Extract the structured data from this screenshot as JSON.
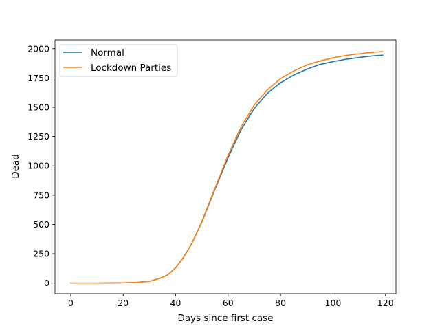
{
  "chart_data": {
    "type": "line",
    "title": "",
    "xlabel": "Days since first case",
    "ylabel": "Dead",
    "xlim": [
      -6,
      124
    ],
    "ylim": [
      -90,
      2075
    ],
    "xticks": [
      0,
      20,
      40,
      60,
      80,
      100,
      120
    ],
    "yticks": [
      0,
      250,
      500,
      750,
      1000,
      1250,
      1500,
      1750,
      2000
    ],
    "grid": false,
    "legend_position": "top-left",
    "series": [
      {
        "name": "Normal",
        "color": "#1f77b4",
        "x": [
          0,
          10,
          20,
          25,
          30,
          34,
          37,
          40,
          43,
          46,
          50,
          55,
          60,
          65,
          70,
          75,
          80,
          85,
          90,
          95,
          100,
          105,
          110,
          115,
          119
        ],
        "y": [
          0,
          0,
          2,
          5,
          15,
          40,
          70,
          130,
          220,
          330,
          520,
          800,
          1070,
          1310,
          1490,
          1620,
          1710,
          1775,
          1825,
          1865,
          1890,
          1910,
          1925,
          1938,
          1945
        ]
      },
      {
        "name": "Lockdown Parties",
        "color": "#ff7f0e",
        "x": [
          0,
          10,
          20,
          25,
          30,
          34,
          37,
          40,
          43,
          46,
          50,
          55,
          60,
          65,
          70,
          75,
          80,
          85,
          90,
          95,
          100,
          105,
          110,
          115,
          119
        ],
        "y": [
          0,
          0,
          2,
          5,
          15,
          40,
          70,
          130,
          220,
          330,
          525,
          810,
          1090,
          1335,
          1520,
          1650,
          1745,
          1810,
          1860,
          1895,
          1922,
          1942,
          1957,
          1969,
          1975
        ]
      }
    ]
  }
}
